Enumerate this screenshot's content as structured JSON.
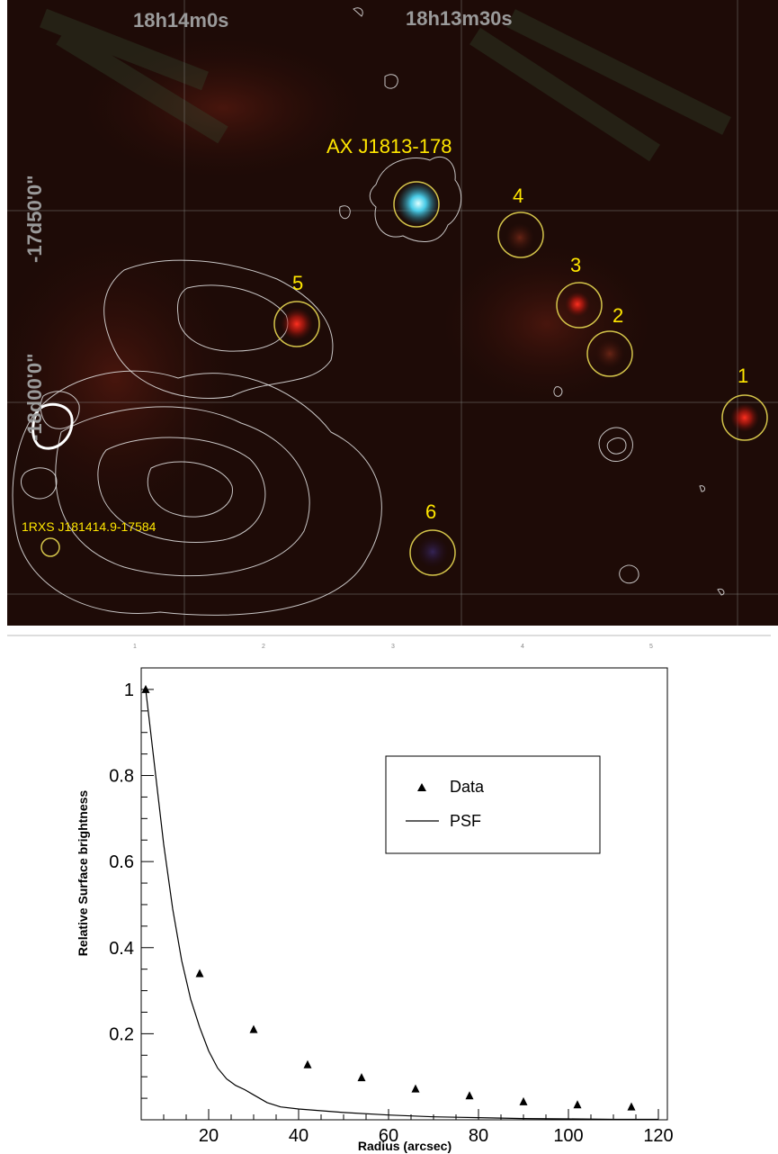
{
  "sky_image": {
    "ra_labels": [
      "18h14m0s",
      "18h13m30s"
    ],
    "dec_labels": [
      "-17d50'0\"",
      "-18d00'0\""
    ],
    "main_source_label": "AX J1813-178",
    "rosat_source_label": "1RXS J181414.9-17584",
    "numbered_sources": [
      "1",
      "2",
      "3",
      "4",
      "5",
      "6"
    ],
    "colors": {
      "background": "#1e0b07",
      "label": "#ffe600",
      "circle": "#d4c44a",
      "contour": "#e6e6e6",
      "main_source": "#4de0ff",
      "red_source": "#ff2a1a"
    }
  },
  "ruler": {
    "ticks": [
      "1",
      "2",
      "3",
      "4",
      "5"
    ]
  },
  "chart_data": {
    "type": "scatter",
    "xlabel": "Radius (arcsec)",
    "ylabel": "Relative Surface brightness",
    "xlim": [
      5,
      122
    ],
    "ylim": [
      0,
      1.05
    ],
    "x_ticks": [
      20,
      40,
      60,
      80,
      100,
      120
    ],
    "y_ticks": [
      0.2,
      0.4,
      0.6,
      0.8,
      1
    ],
    "grid": false,
    "legend_position": "right-middle",
    "series": [
      {
        "name": "Data",
        "marker": "triangle",
        "points": [
          {
            "x": 6,
            "y": 1.0
          },
          {
            "x": 18,
            "y": 0.34
          },
          {
            "x": 30,
            "y": 0.21
          },
          {
            "x": 42,
            "y": 0.128
          },
          {
            "x": 54,
            "y": 0.098
          },
          {
            "x": 66,
            "y": 0.072
          },
          {
            "x": 78,
            "y": 0.056
          },
          {
            "x": 90,
            "y": 0.042
          },
          {
            "x": 102,
            "y": 0.035
          },
          {
            "x": 114,
            "y": 0.03
          }
        ]
      },
      {
        "name": "PSF",
        "marker": "line",
        "points": [
          {
            "x": 6,
            "y": 1.0
          },
          {
            "x": 8,
            "y": 0.82
          },
          {
            "x": 10,
            "y": 0.64
          },
          {
            "x": 12,
            "y": 0.49
          },
          {
            "x": 14,
            "y": 0.37
          },
          {
            "x": 16,
            "y": 0.28
          },
          {
            "x": 18,
            "y": 0.215
          },
          {
            "x": 20,
            "y": 0.16
          },
          {
            "x": 22,
            "y": 0.12
          },
          {
            "x": 24,
            "y": 0.095
          },
          {
            "x": 26,
            "y": 0.08
          },
          {
            "x": 28,
            "y": 0.07
          },
          {
            "x": 30,
            "y": 0.058
          },
          {
            "x": 33,
            "y": 0.04
          },
          {
            "x": 36,
            "y": 0.03
          },
          {
            "x": 40,
            "y": 0.025
          },
          {
            "x": 50,
            "y": 0.017
          },
          {
            "x": 60,
            "y": 0.011
          },
          {
            "x": 70,
            "y": 0.007
          },
          {
            "x": 80,
            "y": 0.005
          },
          {
            "x": 90,
            "y": 0.003
          },
          {
            "x": 100,
            "y": 0.002
          },
          {
            "x": 110,
            "y": 0.001
          },
          {
            "x": 120,
            "y": 0.001
          }
        ]
      }
    ]
  }
}
